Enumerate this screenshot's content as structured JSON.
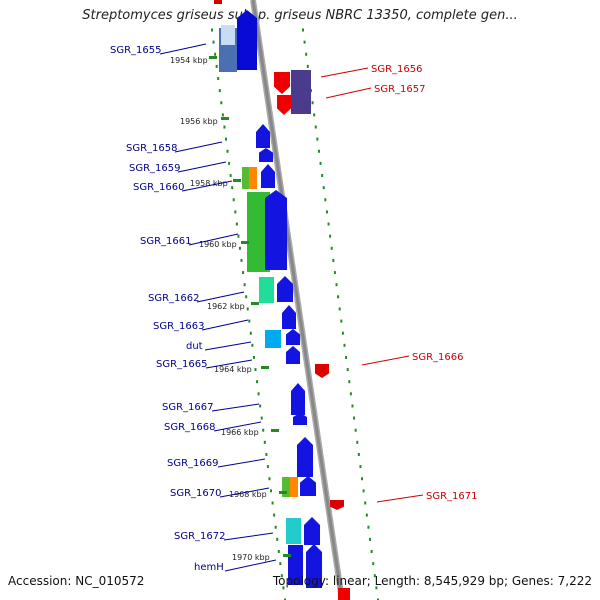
{
  "title": "Streptomyces griseus subsp. griseus NBRC 13350, complete gen...",
  "footer": {
    "accession": "Accession: NC_010572",
    "topology": "Topology: linear; Length: 8,545,929 bp; Genes: 7,222"
  },
  "colors": {
    "forward_label": "#00008b",
    "reverse_label": "#cc0000",
    "backbone": "#888888",
    "tick": "#228b22"
  },
  "ticks": [
    {
      "label": "1954 kbp"
    },
    {
      "label": "1956 kbp"
    },
    {
      "label": "1958 kbp"
    },
    {
      "label": "1960 kbp"
    },
    {
      "label": "1962 kbp"
    },
    {
      "label": "1964 kbp"
    },
    {
      "label": "1966 kbp"
    },
    {
      "label": "1968 kbp"
    },
    {
      "label": "1970 kbp"
    }
  ],
  "genes_forward": [
    {
      "label": "SGR_1655"
    },
    {
      "label": "SGR_1658"
    },
    {
      "label": "SGR_1659"
    },
    {
      "label": "SGR_1660"
    },
    {
      "label": "SGR_1661"
    },
    {
      "label": "SGR_1662"
    },
    {
      "label": "SGR_1663"
    },
    {
      "label": "dut"
    },
    {
      "label": "SGR_1665"
    },
    {
      "label": "SGR_1667"
    },
    {
      "label": "SGR_1668"
    },
    {
      "label": "SGR_1669"
    },
    {
      "label": "SGR_1670"
    },
    {
      "label": "SGR_1672"
    },
    {
      "label": "hemH"
    }
  ],
  "genes_reverse": [
    {
      "label": "SGR_1656"
    },
    {
      "label": "SGR_1657"
    },
    {
      "label": "SGR_1666"
    },
    {
      "label": "SGR_1671"
    }
  ]
}
